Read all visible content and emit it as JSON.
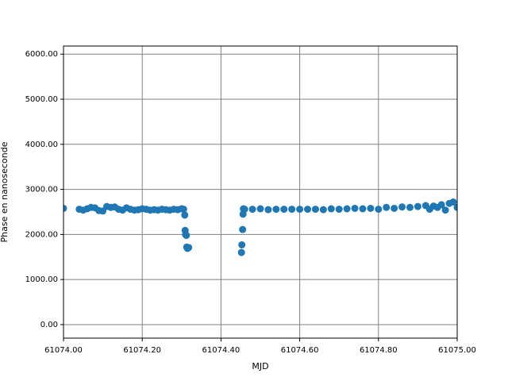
{
  "chart_data": {
    "type": "scatter",
    "x_label": "MJD",
    "y_label": "Phase en nanoseconde",
    "xlim": [
      61074.0,
      61075.0
    ],
    "xticks": [
      {
        "value": 61074.0,
        "label": "61074.00"
      },
      {
        "value": 61074.2,
        "label": "61074.20"
      },
      {
        "value": 61074.4,
        "label": "61074.40"
      },
      {
        "value": 61074.6,
        "label": "61074.60"
      },
      {
        "value": 61074.8,
        "label": "61074.80"
      },
      {
        "value": 61075.0,
        "label": "61075.00"
      }
    ],
    "ylim": [
      -300,
      6180
    ],
    "yticks": [
      {
        "value": 0,
        "label": "0.00"
      },
      {
        "value": 1000,
        "label": "1000.00"
      },
      {
        "value": 2000,
        "label": "2000.00"
      },
      {
        "value": 3000,
        "label": "3000.00"
      },
      {
        "value": 4000,
        "label": "4000.00"
      },
      {
        "value": 5000,
        "label": "5000.00"
      },
      {
        "value": 6000,
        "label": "6000.00"
      }
    ],
    "grid": true,
    "grid_color": "#808080",
    "series": [
      {
        "color": "#1f77b4",
        "x": [
          61074.0,
          61074.04,
          61074.05,
          61074.06,
          61074.07,
          61074.08,
          61074.09,
          61074.1,
          61074.11,
          61074.12,
          61074.13,
          61074.14,
          61074.15,
          61074.16,
          61074.17,
          61074.18,
          61074.19,
          61074.2,
          61074.21,
          61074.22,
          61074.23,
          61074.24,
          61074.25,
          61074.26,
          61074.27,
          61074.28,
          61074.29,
          61074.3,
          61074.305,
          61074.308,
          61074.309,
          61074.31,
          61074.312,
          61074.313,
          61074.315,
          61074.318,
          61074.452,
          61074.453,
          61074.455,
          61074.456,
          61074.457,
          61074.46,
          61074.48,
          61074.5,
          61074.52,
          61074.54,
          61074.56,
          61074.58,
          61074.6,
          61074.62,
          61074.64,
          61074.66,
          61074.68,
          61074.7,
          61074.72,
          61074.74,
          61074.76,
          61074.78,
          61074.8,
          61074.82,
          61074.84,
          61074.86,
          61074.88,
          61074.9,
          61074.92,
          61074.93,
          61074.94,
          61074.95,
          61074.96,
          61074.97,
          61074.98,
          61074.99,
          61075.0
        ],
        "values": [
          2580,
          2560,
          2540,
          2570,
          2600,
          2590,
          2530,
          2520,
          2620,
          2600,
          2610,
          2560,
          2540,
          2590,
          2560,
          2540,
          2550,
          2570,
          2560,
          2540,
          2550,
          2540,
          2560,
          2550,
          2540,
          2560,
          2550,
          2570,
          2560,
          2430,
          2090,
          2000,
          1980,
          1720,
          1690,
          1710,
          1600,
          1770,
          2110,
          2450,
          2570,
          2560,
          2560,
          2570,
          2550,
          2560,
          2560,
          2560,
          2560,
          2560,
          2560,
          2550,
          2570,
          2560,
          2570,
          2580,
          2570,
          2580,
          2560,
          2600,
          2580,
          2610,
          2600,
          2620,
          2640,
          2560,
          2630,
          2600,
          2660,
          2540,
          2690,
          2720,
          2600
        ]
      }
    ]
  }
}
